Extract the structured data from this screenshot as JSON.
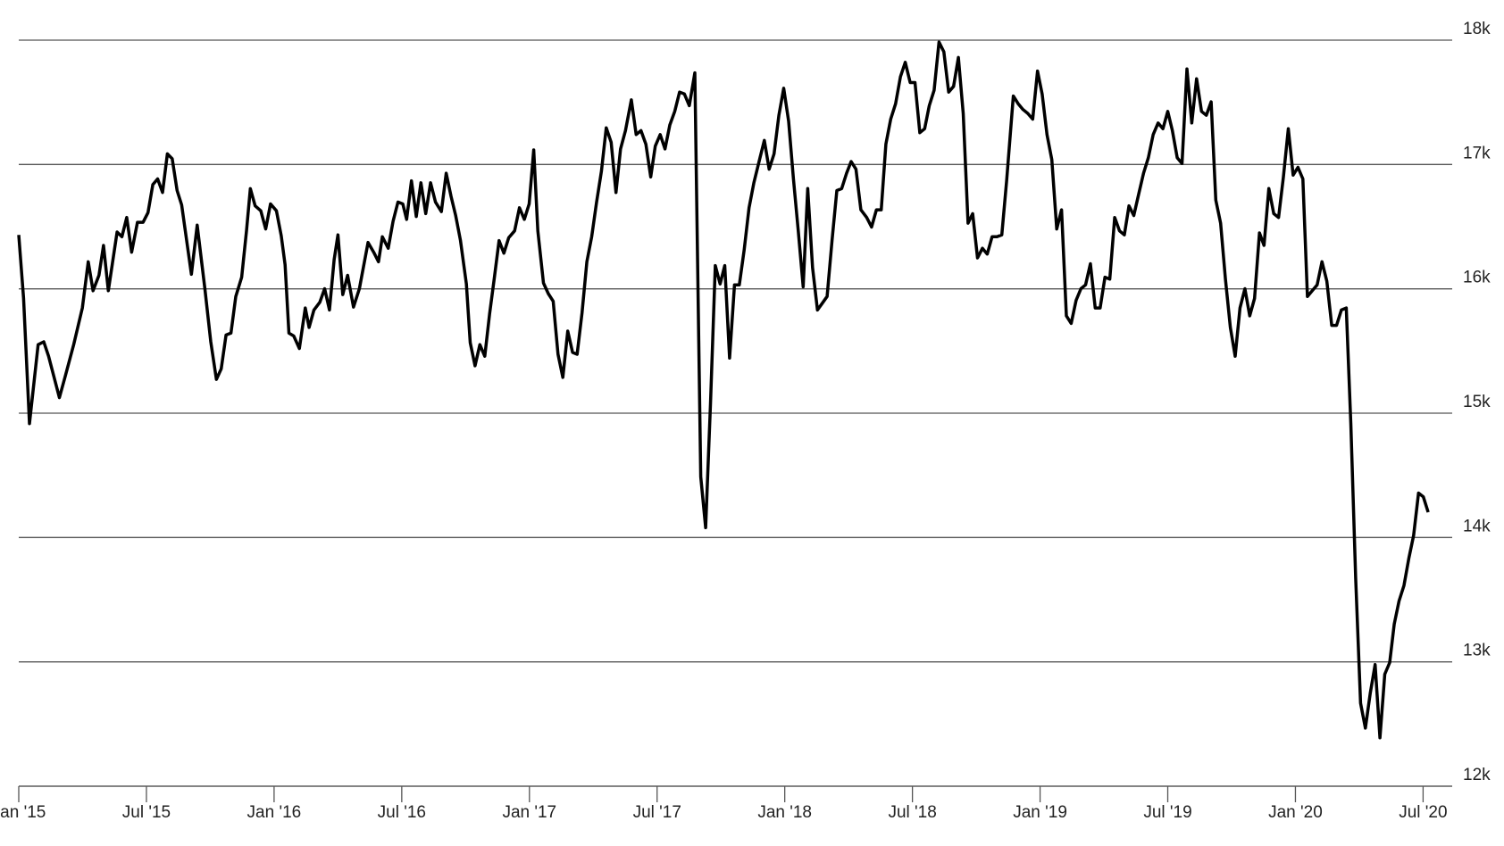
{
  "chart_data": {
    "type": "line",
    "color": "#000000",
    "grid": true,
    "xlim": [
      2015,
      2020.614
    ],
    "xticks": [
      {
        "value": 2015,
        "label": "Jan '15"
      },
      {
        "value": 2015.5,
        "label": "Jul '15"
      },
      {
        "value": 2016,
        "label": "Jan '16"
      },
      {
        "value": 2016.5,
        "label": "Jul '16"
      },
      {
        "value": 2017,
        "label": "Jan '17"
      },
      {
        "value": 2017.5,
        "label": "Jul '17"
      },
      {
        "value": 2018,
        "label": "Jan '18"
      },
      {
        "value": 2018.5,
        "label": "Jul '18"
      },
      {
        "value": 2019,
        "label": "Jan '19"
      },
      {
        "value": 2019.5,
        "label": "Jul '19"
      },
      {
        "value": 2020,
        "label": "Jan '20"
      },
      {
        "value": 2020.5,
        "label": "Jul '20"
      }
    ],
    "ylim": [
      12000,
      18000
    ],
    "yticks": [
      {
        "value": 12000,
        "label": "12k"
      },
      {
        "value": 13000,
        "label": "13k"
      },
      {
        "value": 14000,
        "label": "14k"
      },
      {
        "value": 15000,
        "label": "15k"
      },
      {
        "value": 16000,
        "label": "16k"
      },
      {
        "value": 17000,
        "label": "17k"
      },
      {
        "value": 18000,
        "label": "18k"
      }
    ],
    "x": [
      2015.0,
      2015.019,
      2015.042,
      2015.076,
      2015.098,
      2015.117,
      2015.159,
      2015.181,
      2015.215,
      2015.249,
      2015.272,
      2015.291,
      2015.314,
      2015.332,
      2015.351,
      2015.385,
      2015.404,
      2015.423,
      2015.442,
      2015.465,
      2015.487,
      2015.506,
      2015.525,
      2015.544,
      2015.563,
      2015.582,
      2015.601,
      2015.62,
      2015.638,
      2015.676,
      2015.699,
      2015.729,
      2015.752,
      2015.774,
      2015.793,
      2015.812,
      2015.831,
      2015.85,
      2015.873,
      2015.892,
      2015.907,
      2015.926,
      2015.948,
      2015.967,
      2015.986,
      2016.009,
      2016.028,
      2016.043,
      2016.058,
      2016.077,
      2016.099,
      2016.122,
      2016.137,
      2016.156,
      2016.179,
      2016.198,
      2016.217,
      2016.235,
      2016.25,
      2016.269,
      2016.288,
      2016.311,
      2016.334,
      2016.368,
      2016.39,
      2016.409,
      2016.424,
      2016.447,
      2016.466,
      2016.485,
      2016.504,
      2016.519,
      2016.538,
      2016.557,
      2016.575,
      2016.594,
      2016.613,
      2016.632,
      2016.655,
      2016.674,
      2016.693,
      2016.711,
      2016.73,
      2016.753,
      2016.768,
      2016.787,
      2016.806,
      2016.825,
      2016.844,
      2016.863,
      2016.881,
      2016.9,
      2016.919,
      2016.942,
      2016.961,
      2016.98,
      2016.999,
      2017.017,
      2017.033,
      2017.055,
      2017.074,
      2017.093,
      2017.112,
      2017.131,
      2017.15,
      2017.169,
      2017.187,
      2017.206,
      2017.225,
      2017.244,
      2017.263,
      2017.282,
      2017.301,
      2017.32,
      2017.339,
      2017.357,
      2017.376,
      2017.399,
      2017.418,
      2017.437,
      2017.456,
      2017.475,
      2017.493,
      2017.512,
      2017.531,
      2017.55,
      2017.569,
      2017.588,
      2017.607,
      2017.626,
      2017.648,
      2017.671,
      2017.69,
      2017.709,
      2017.728,
      2017.747,
      2017.765,
      2017.784,
      2017.803,
      2017.822,
      2017.841,
      2017.86,
      2017.879,
      2017.902,
      2017.92,
      2017.939,
      2017.958,
      2017.977,
      2017.996,
      2018.015,
      2018.034,
      2018.053,
      2018.072,
      2018.09,
      2018.109,
      2018.128,
      2018.147,
      2018.166,
      2018.185,
      2018.204,
      2018.223,
      2018.242,
      2018.26,
      2018.279,
      2018.298,
      2018.321,
      2018.34,
      2018.359,
      2018.378,
      2018.396,
      2018.415,
      2018.434,
      2018.453,
      2018.472,
      2018.491,
      2018.51,
      2018.529,
      2018.548,
      2018.566,
      2018.585,
      2018.604,
      2018.623,
      2018.642,
      2018.661,
      2018.68,
      2018.699,
      2018.718,
      2018.736,
      2018.755,
      2018.774,
      2018.793,
      2018.812,
      2018.831,
      2018.85,
      2018.869,
      2018.895,
      2018.914,
      2018.933,
      2018.952,
      2018.971,
      2018.99,
      2019.008,
      2019.027,
      2019.046,
      2019.065,
      2019.084,
      2019.103,
      2019.122,
      2019.141,
      2019.16,
      2019.178,
      2019.197,
      2019.216,
      2019.235,
      2019.254,
      2019.273,
      2019.292,
      2019.311,
      2019.33,
      2019.348,
      2019.367,
      2019.386,
      2019.405,
      2019.424,
      2019.443,
      2019.462,
      2019.481,
      2019.5,
      2019.518,
      2019.537,
      2019.556,
      2019.575,
      2019.594,
      2019.613,
      2019.632,
      2019.651,
      2019.67,
      2019.688,
      2019.707,
      2019.726,
      2019.745,
      2019.764,
      2019.783,
      2019.802,
      2019.821,
      2019.84,
      2019.859,
      2019.877,
      2019.896,
      2019.915,
      2019.934,
      2019.953,
      2019.972,
      2019.991,
      2020.01,
      2020.029,
      2020.047,
      2020.066,
      2020.085,
      2020.104,
      2020.123,
      2020.142,
      2020.161,
      2020.18,
      2020.199,
      2020.217,
      2020.236,
      2020.255,
      2020.274,
      2020.293,
      2020.312,
      2020.331,
      2020.35,
      2020.369,
      2020.387,
      2020.406,
      2020.425,
      2020.444,
      2020.463,
      2020.482,
      2020.501,
      2020.52
    ],
    "values": [
      16434,
      15923,
      14916,
      15551,
      15574,
      15458,
      15125,
      15288,
      15551,
      15846,
      16218,
      15985,
      16109,
      16349,
      15985,
      16457,
      16419,
      16574,
      16295,
      16535,
      16535,
      16613,
      16838,
      16884,
      16775,
      17086,
      17047,
      16791,
      16675,
      16117,
      16512,
      16001,
      15574,
      15272,
      15357,
      15629,
      15644,
      15939,
      16094,
      16466,
      16806,
      16667,
      16628,
      16481,
      16683,
      16628,
      16427,
      16194,
      15644,
      15621,
      15520,
      15846,
      15690,
      15830,
      15892,
      16001,
      15830,
      16233,
      16434,
      15954,
      16109,
      15853,
      16001,
      16373,
      16295,
      16218,
      16419,
      16326,
      16543,
      16698,
      16683,
      16559,
      16869,
      16582,
      16853,
      16605,
      16853,
      16698,
      16621,
      16930,
      16745,
      16590,
      16388,
      16039,
      15567,
      15381,
      15551,
      15458,
      15799,
      16094,
      16388,
      16287,
      16411,
      16466,
      16652,
      16559,
      16683,
      17117,
      16466,
      16047,
      15962,
      15900,
      15474,
      15288,
      15660,
      15489,
      15474,
      15807,
      16218,
      16419,
      16698,
      16946,
      17295,
      17179,
      16775,
      17125,
      17272,
      17520,
      17241,
      17272,
      17163,
      16900,
      17148,
      17241,
      17125,
      17318,
      17427,
      17582,
      17567,
      17473,
      17737,
      14489,
      14079,
      15071,
      16187,
      16039,
      16187,
      15443,
      16032,
      16032,
      16311,
      16652,
      16853,
      17047,
      17194,
      16962,
      17086,
      17396,
      17613,
      17349,
      16884,
      16466,
      16016,
      16807,
      16171,
      15830,
      15884,
      15939,
      16388,
      16791,
      16806,
      16930,
      17024,
      16962,
      16636,
      16574,
      16497,
      16636,
      16636,
      17163,
      17365,
      17489,
      17706,
      17822,
      17659,
      17659,
      17256,
      17287,
      17473,
      17597,
      17985,
      17907,
      17582,
      17628,
      17861,
      17411,
      16528,
      16605,
      16249,
      16326,
      16280,
      16419,
      16419,
      16434,
      16869,
      17551,
      17489,
      17442,
      17411,
      17365,
      17752,
      17566,
      17241,
      17039,
      16481,
      16636,
      15783,
      15722,
      15908,
      16001,
      16032,
      16202,
      15846,
      15846,
      16094,
      16078,
      16574,
      16466,
      16434,
      16667,
      16590,
      16760,
      16930,
      17055,
      17241,
      17334,
      17287,
      17427,
      17272,
      17055,
      17008,
      17768,
      17334,
      17690,
      17427,
      17396,
      17504,
      16714,
      16528,
      16078,
      15690,
      15458,
      15846,
      16001,
      15783,
      15923,
      16450,
      16349,
      16807,
      16605,
      16574,
      16900,
      17287,
      16915,
      16977,
      16884,
      15939,
      15985,
      16032,
      16218,
      16063,
      15706,
      15706,
      15830,
      15846,
      14916,
      13676,
      12668,
      12467,
      12746,
      12978,
      12389,
      12901,
      12994,
      13304,
      13490,
      13614,
      13831,
      14017,
      14358,
      14327,
      14203
    ]
  }
}
